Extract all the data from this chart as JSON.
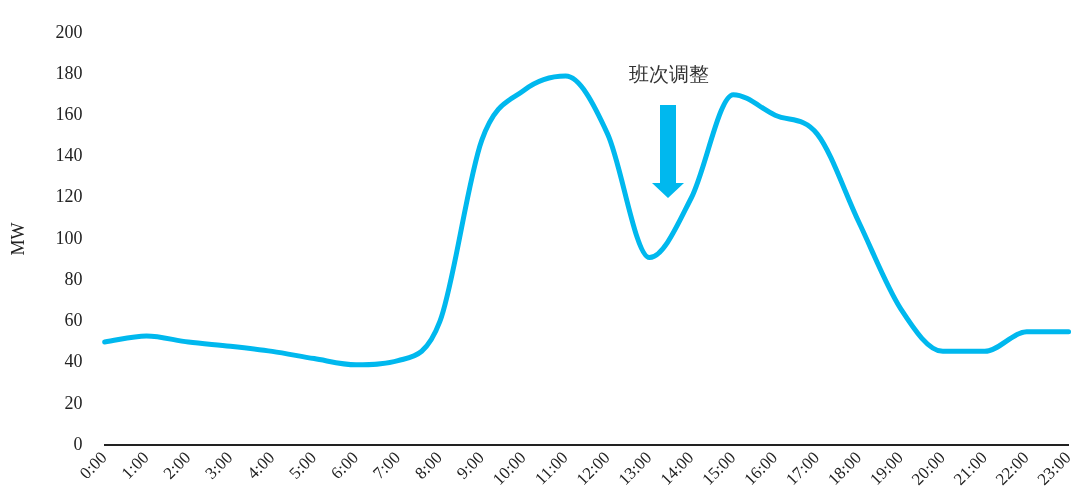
{
  "chart_data": {
    "type": "line",
    "ylabel": "MW",
    "annotations": [
      "班次调整"
    ],
    "categories": [
      "0:00",
      "1:00",
      "2:00",
      "3:00",
      "4:00",
      "5:00",
      "6:00",
      "7:00",
      "8:00",
      "9:00",
      "10:00",
      "11:00",
      "12:00",
      "13:00",
      "14:00",
      "15:00",
      "16:00",
      "17:00",
      "18:00",
      "19:00",
      "20:00",
      "21:00",
      "22:00",
      "23:00"
    ],
    "series": [
      {
        "color": "#00b8ee",
        "values": [
          50,
          53,
          50,
          48,
          45.5,
          42,
          39,
          41,
          60,
          148,
          172,
          179,
          151,
          91,
          120,
          170,
          160,
          151,
          108,
          66,
          45.5,
          45.5,
          55,
          55
        ]
      }
    ],
    "ylim": [
      0,
      200
    ],
    "yticks": [
      0,
      20,
      40,
      60,
      80,
      100,
      120,
      140,
      160,
      180,
      200
    ],
    "grid": false,
    "legend": false,
    "marker": "none",
    "line_style": "solid"
  }
}
